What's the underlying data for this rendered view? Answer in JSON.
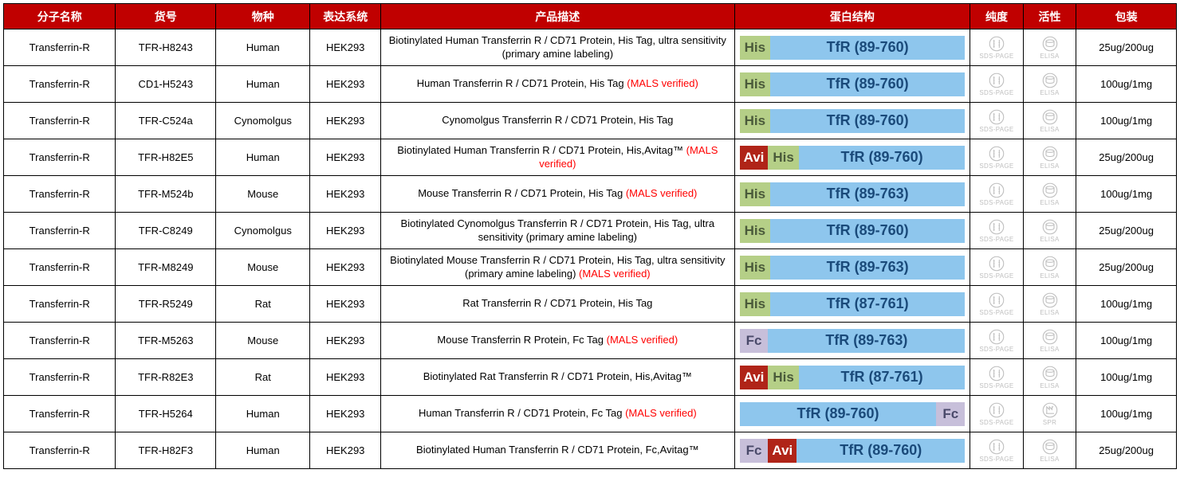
{
  "columns": {
    "molecule": "分子名称",
    "sku": "货号",
    "species": "物种",
    "expression": "表达系统",
    "description": "产品描述",
    "structure": "蛋白结构",
    "purity": "纯度",
    "activity": "活性",
    "packaging": "包装"
  },
  "icon_labels": {
    "sds": "SDS-PAGE",
    "elisa": "ELISA",
    "spr": "SPR"
  },
  "struct_domain_prefix": "TfR",
  "colors": {
    "header_bg": "#c00000",
    "header_fg": "#ffffff",
    "border": "#000000",
    "mals": "#ff0000",
    "avi_bg": "#b02418",
    "avi_fg": "#ffffff",
    "his_bg": "#b5cf87",
    "his_fg": "#4a5a3a",
    "fc_bg": "#c7bfda",
    "fc_fg": "#4a4a6a",
    "dom_bg": "#8ec6ed",
    "dom_fg": "#1a4a7a",
    "icon_stroke": "#bfbfbf"
  },
  "rows": [
    {
      "molecule": "Transferrin-R",
      "sku": "TFR-H8243",
      "species": "Human",
      "expression": "HEK293",
      "desc_main": "Biotinylated Human Transferrin R / CD71 Protein, His Tag, ultra sensitivity (primary amine labeling)",
      "desc_mals": "",
      "struct": [
        "his",
        "dom"
      ],
      "domain_range": "(89-760)",
      "purity_icon": "sds",
      "activity_icon": "elisa",
      "packaging": "25ug/200ug"
    },
    {
      "molecule": "Transferrin-R",
      "sku": "CD1-H5243",
      "species": "Human",
      "expression": "HEK293",
      "desc_main": "Human Transferrin R / CD71 Protein, His Tag ",
      "desc_mals": "(MALS verified)",
      "struct": [
        "his",
        "dom"
      ],
      "domain_range": "(89-760)",
      "purity_icon": "sds",
      "activity_icon": "elisa",
      "packaging": "100ug/1mg"
    },
    {
      "molecule": "Transferrin-R",
      "sku": "TFR-C524a",
      "species": "Cynomolgus",
      "expression": "HEK293",
      "desc_main": "Cynomolgus Transferrin R / CD71 Protein, His Tag",
      "desc_mals": "",
      "struct": [
        "his",
        "dom"
      ],
      "domain_range": "(89-760)",
      "purity_icon": "sds",
      "activity_icon": "elisa",
      "packaging": "100ug/1mg"
    },
    {
      "molecule": "Transferrin-R",
      "sku": "TFR-H82E5",
      "species": "Human",
      "expression": "HEK293",
      "desc_main": "Biotinylated Human Transferrin R / CD71 Protein, His,Avitag™ ",
      "desc_mals": "(MALS verified)",
      "struct": [
        "avi",
        "his",
        "dom"
      ],
      "domain_range": "(89-760)",
      "purity_icon": "sds",
      "activity_icon": "elisa",
      "packaging": "25ug/200ug"
    },
    {
      "molecule": "Transferrin-R",
      "sku": "TFR-M524b",
      "species": "Mouse",
      "expression": "HEK293",
      "desc_main": "Mouse Transferrin R / CD71 Protein, His Tag ",
      "desc_mals": "(MALS verified)",
      "struct": [
        "his",
        "dom"
      ],
      "domain_range": "(89-763)",
      "purity_icon": "sds",
      "activity_icon": "elisa",
      "packaging": "100ug/1mg"
    },
    {
      "molecule": "Transferrin-R",
      "sku": "TFR-C8249",
      "species": "Cynomolgus",
      "expression": "HEK293",
      "desc_main": "Biotinylated Cynomolgus Transferrin R / CD71 Protein, His Tag, ultra sensitivity (primary amine labeling)",
      "desc_mals": "",
      "struct": [
        "his",
        "dom"
      ],
      "domain_range": "(89-760)",
      "purity_icon": "sds",
      "activity_icon": "elisa",
      "packaging": "25ug/200ug"
    },
    {
      "molecule": "Transferrin-R",
      "sku": "TFR-M8249",
      "species": "Mouse",
      "expression": "HEK293",
      "desc_main": "Biotinylated Mouse Transferrin R / CD71 Protein, His Tag, ultra sensitivity (primary amine labeling) ",
      "desc_mals": "(MALS verified)",
      "struct": [
        "his",
        "dom"
      ],
      "domain_range": "(89-763)",
      "purity_icon": "sds",
      "activity_icon": "elisa",
      "packaging": "25ug/200ug"
    },
    {
      "molecule": "Transferrin-R",
      "sku": "TFR-R5249",
      "species": "Rat",
      "expression": "HEK293",
      "desc_main": "Rat Transferrin R / CD71 Protein, His Tag",
      "desc_mals": "",
      "struct": [
        "his",
        "dom"
      ],
      "domain_range": "(87-761)",
      "purity_icon": "sds",
      "activity_icon": "elisa",
      "packaging": "100ug/1mg"
    },
    {
      "molecule": "Transferrin-R",
      "sku": "TFR-M5263",
      "species": "Mouse",
      "expression": "HEK293",
      "desc_main": "Mouse Transferrin R Protein, Fc Tag ",
      "desc_mals": "(MALS verified)",
      "struct": [
        "fc",
        "dom"
      ],
      "domain_range": "(89-763)",
      "purity_icon": "sds",
      "activity_icon": "elisa",
      "packaging": "100ug/1mg"
    },
    {
      "molecule": "Transferrin-R",
      "sku": "TFR-R82E3",
      "species": "Rat",
      "expression": "HEK293",
      "desc_main": "Biotinylated Rat Transferrin R / CD71 Protein, His,Avitag™",
      "desc_mals": "",
      "struct": [
        "avi",
        "his",
        "dom"
      ],
      "domain_range": "(87-761)",
      "purity_icon": "sds",
      "activity_icon": "elisa",
      "packaging": "100ug/1mg"
    },
    {
      "molecule": "Transferrin-R",
      "sku": "TFR-H5264",
      "species": "Human",
      "expression": "HEK293",
      "desc_main": "Human Transferrin R / CD71 Protein, Fc Tag ",
      "desc_mals": "(MALS verified)",
      "struct": [
        "dom",
        "fc"
      ],
      "domain_range": "(89-760)",
      "purity_icon": "sds",
      "activity_icon": "spr",
      "packaging": "100ug/1mg"
    },
    {
      "molecule": "Transferrin-R",
      "sku": "TFR-H82F3",
      "species": "Human",
      "expression": "HEK293",
      "desc_main": "Biotinylated Human Transferrin R / CD71 Protein, Fc,Avitag™",
      "desc_mals": "",
      "struct": [
        "fc",
        "avi",
        "dom"
      ],
      "domain_range": "(89-760)",
      "purity_icon": "sds",
      "activity_icon": "elisa",
      "packaging": "25ug/200ug"
    }
  ]
}
